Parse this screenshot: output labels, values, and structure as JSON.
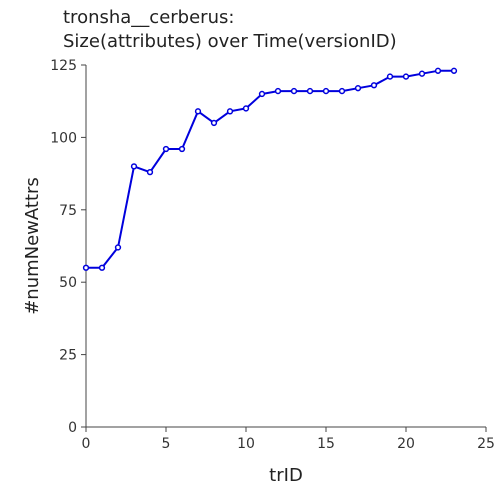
{
  "chart_data": {
    "type": "line",
    "title_lines": [
      "tronsha__cerberus:",
      "Size(attributes) over Time(versionID)"
    ],
    "xlabel": "trID",
    "ylabel": "#numNewAttrs",
    "xlim": [
      0,
      25
    ],
    "ylim": [
      0,
      125
    ],
    "xticks": [
      0,
      5,
      10,
      15,
      20,
      25
    ],
    "yticks": [
      0,
      25,
      50,
      75,
      100,
      125
    ],
    "grid": false,
    "line_color": "#0000dd",
    "x": [
      0,
      1,
      2,
      3,
      4,
      5,
      6,
      7,
      8,
      9,
      10,
      11,
      12,
      13,
      14,
      15,
      16,
      17,
      18,
      19,
      20,
      21,
      22,
      23
    ],
    "values": [
      55,
      55,
      62,
      90,
      88,
      96,
      96,
      109,
      105,
      109,
      110,
      115,
      116,
      116,
      116,
      116,
      116,
      117,
      118,
      121,
      121,
      122,
      123,
      123
    ]
  }
}
